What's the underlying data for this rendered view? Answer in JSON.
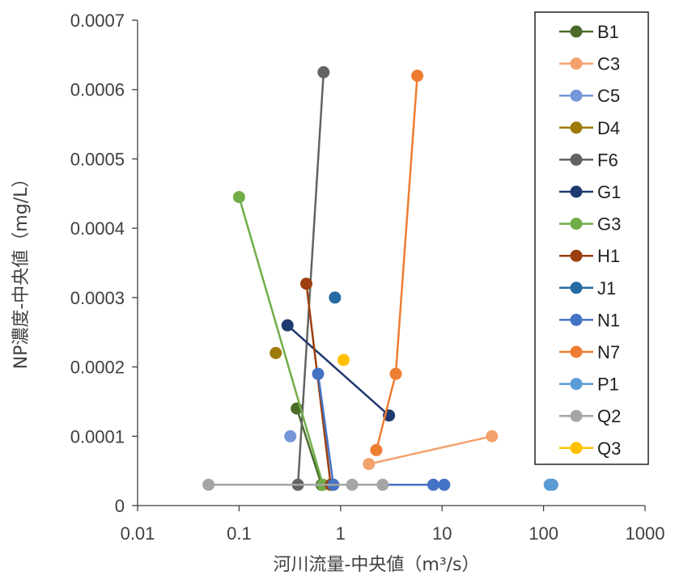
{
  "chart_data": {
    "type": "scatter",
    "xlabel": "河川流量-中央値（m³/s）",
    "ylabel": "NP濃度-中央値（mg/L）",
    "xscale": "log",
    "xlim": [
      0.01,
      1000
    ],
    "ylim": [
      0,
      0.0007
    ],
    "x_ticks": [
      "0.01",
      "0.1",
      "1",
      "10",
      "100",
      "1000"
    ],
    "y_ticks": [
      "0",
      "0.0001",
      "0.0002",
      "0.0003",
      "0.0004",
      "0.0005",
      "0.0006",
      "0.0007"
    ],
    "grid": false,
    "legend_position": "right",
    "series": [
      {
        "name": "B1",
        "color": "#4a6b2a",
        "points": [
          [
            0.37,
            0.00014
          ],
          [
            0.65,
            3e-05
          ]
        ]
      },
      {
        "name": "C3",
        "color": "#f4a26d",
        "points": [
          [
            1.9,
            6e-05
          ],
          [
            31,
            0.0001
          ]
        ]
      },
      {
        "name": "C5",
        "color": "#7597d8",
        "points": [
          [
            0.32,
            0.0001
          ]
        ]
      },
      {
        "name": "D4",
        "color": "#9e7a0a",
        "points": [
          [
            0.23,
            0.00022
          ]
        ]
      },
      {
        "name": "F6",
        "color": "#636363",
        "points": [
          [
            0.38,
            3e-05
          ],
          [
            0.68,
            0.000625
          ]
        ]
      },
      {
        "name": "G1",
        "color": "#1f3a6e",
        "points": [
          [
            0.3,
            0.00026
          ],
          [
            3.0,
            0.00013
          ]
        ]
      },
      {
        "name": "G3",
        "color": "#70ad47",
        "points": [
          [
            0.1,
            0.000445
          ],
          [
            0.67,
            3e-05
          ]
        ]
      },
      {
        "name": "H1",
        "color": "#9c3f0f",
        "points": [
          [
            0.46,
            0.00032
          ],
          [
            0.8,
            3e-05
          ]
        ]
      },
      {
        "name": "J1",
        "color": "#266aa3",
        "points": [
          [
            0.88,
            0.0003
          ]
        ]
      },
      {
        "name": "N1",
        "color": "#4472c4",
        "points": [
          [
            0.6,
            0.00019
          ],
          [
            0.85,
            3e-05
          ],
          [
            8.2,
            3e-05
          ],
          [
            10.5,
            3e-05
          ]
        ]
      },
      {
        "name": "N7",
        "color": "#ed7d31",
        "points": [
          [
            2.25,
            8e-05
          ],
          [
            3.5,
            0.00019
          ],
          [
            5.7,
            0.00062
          ]
        ]
      },
      {
        "name": "P1",
        "color": "#5b9bd5",
        "points": [
          [
            115,
            3e-05
          ],
          [
            122,
            3e-05
          ]
        ]
      },
      {
        "name": "Q2",
        "color": "#a5a5a5",
        "points": [
          [
            0.05,
            3e-05
          ],
          [
            1.3,
            3e-05
          ],
          [
            2.6,
            3e-05
          ]
        ]
      },
      {
        "name": "Q3",
        "color": "#ffc000",
        "points": [
          [
            1.07,
            0.00021
          ]
        ]
      }
    ]
  }
}
